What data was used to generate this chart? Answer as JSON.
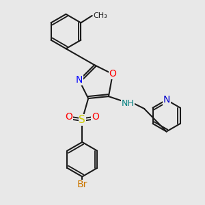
{
  "bg_color": "#e8e8e8",
  "bond_color": "#1a1a1a",
  "bond_lw": 1.5,
  "atom_colors": {
    "O": "#ff0000",
    "N": "#0000ff",
    "S": "#cccc00",
    "Br": "#cc7700",
    "N_pyridine": "#0000cc",
    "NH": "#008080",
    "C": "#1a1a1a"
  },
  "font_size": 9,
  "figsize": [
    3.0,
    3.0
  ],
  "dpi": 100
}
